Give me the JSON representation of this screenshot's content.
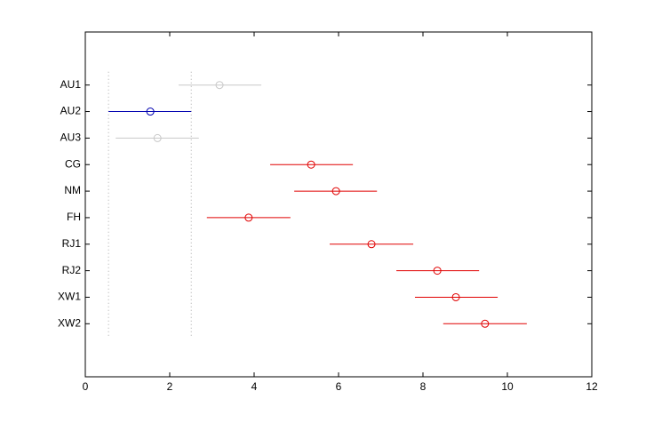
{
  "chart_data": {
    "type": "interval",
    "categories": [
      "AU1",
      "AU2",
      "AU3",
      "CG",
      "NM",
      "FH",
      "RJ1",
      "RJ2",
      "XW1",
      "XW2"
    ],
    "values": [
      3.18,
      1.54,
      1.71,
      5.35,
      5.94,
      3.87,
      6.78,
      8.34,
      8.78,
      9.47
    ],
    "lower": [
      2.21,
      0.55,
      0.72,
      4.38,
      4.95,
      2.88,
      5.79,
      7.37,
      7.81,
      8.48
    ],
    "upper": [
      4.17,
      2.51,
      2.69,
      6.34,
      6.91,
      4.86,
      7.77,
      9.33,
      9.77,
      10.46
    ],
    "colors": [
      "#c8c8c8",
      "#0000b0",
      "#c8c8c8",
      "#e00000",
      "#e00000",
      "#e00000",
      "#e00000",
      "#e00000",
      "#e00000",
      "#e00000"
    ],
    "reference_lines": [
      "lower.1",
      "upper.1"
    ],
    "xlim": [
      0,
      12
    ],
    "xticks": [
      0,
      2,
      4,
      6,
      8,
      10,
      12
    ]
  }
}
